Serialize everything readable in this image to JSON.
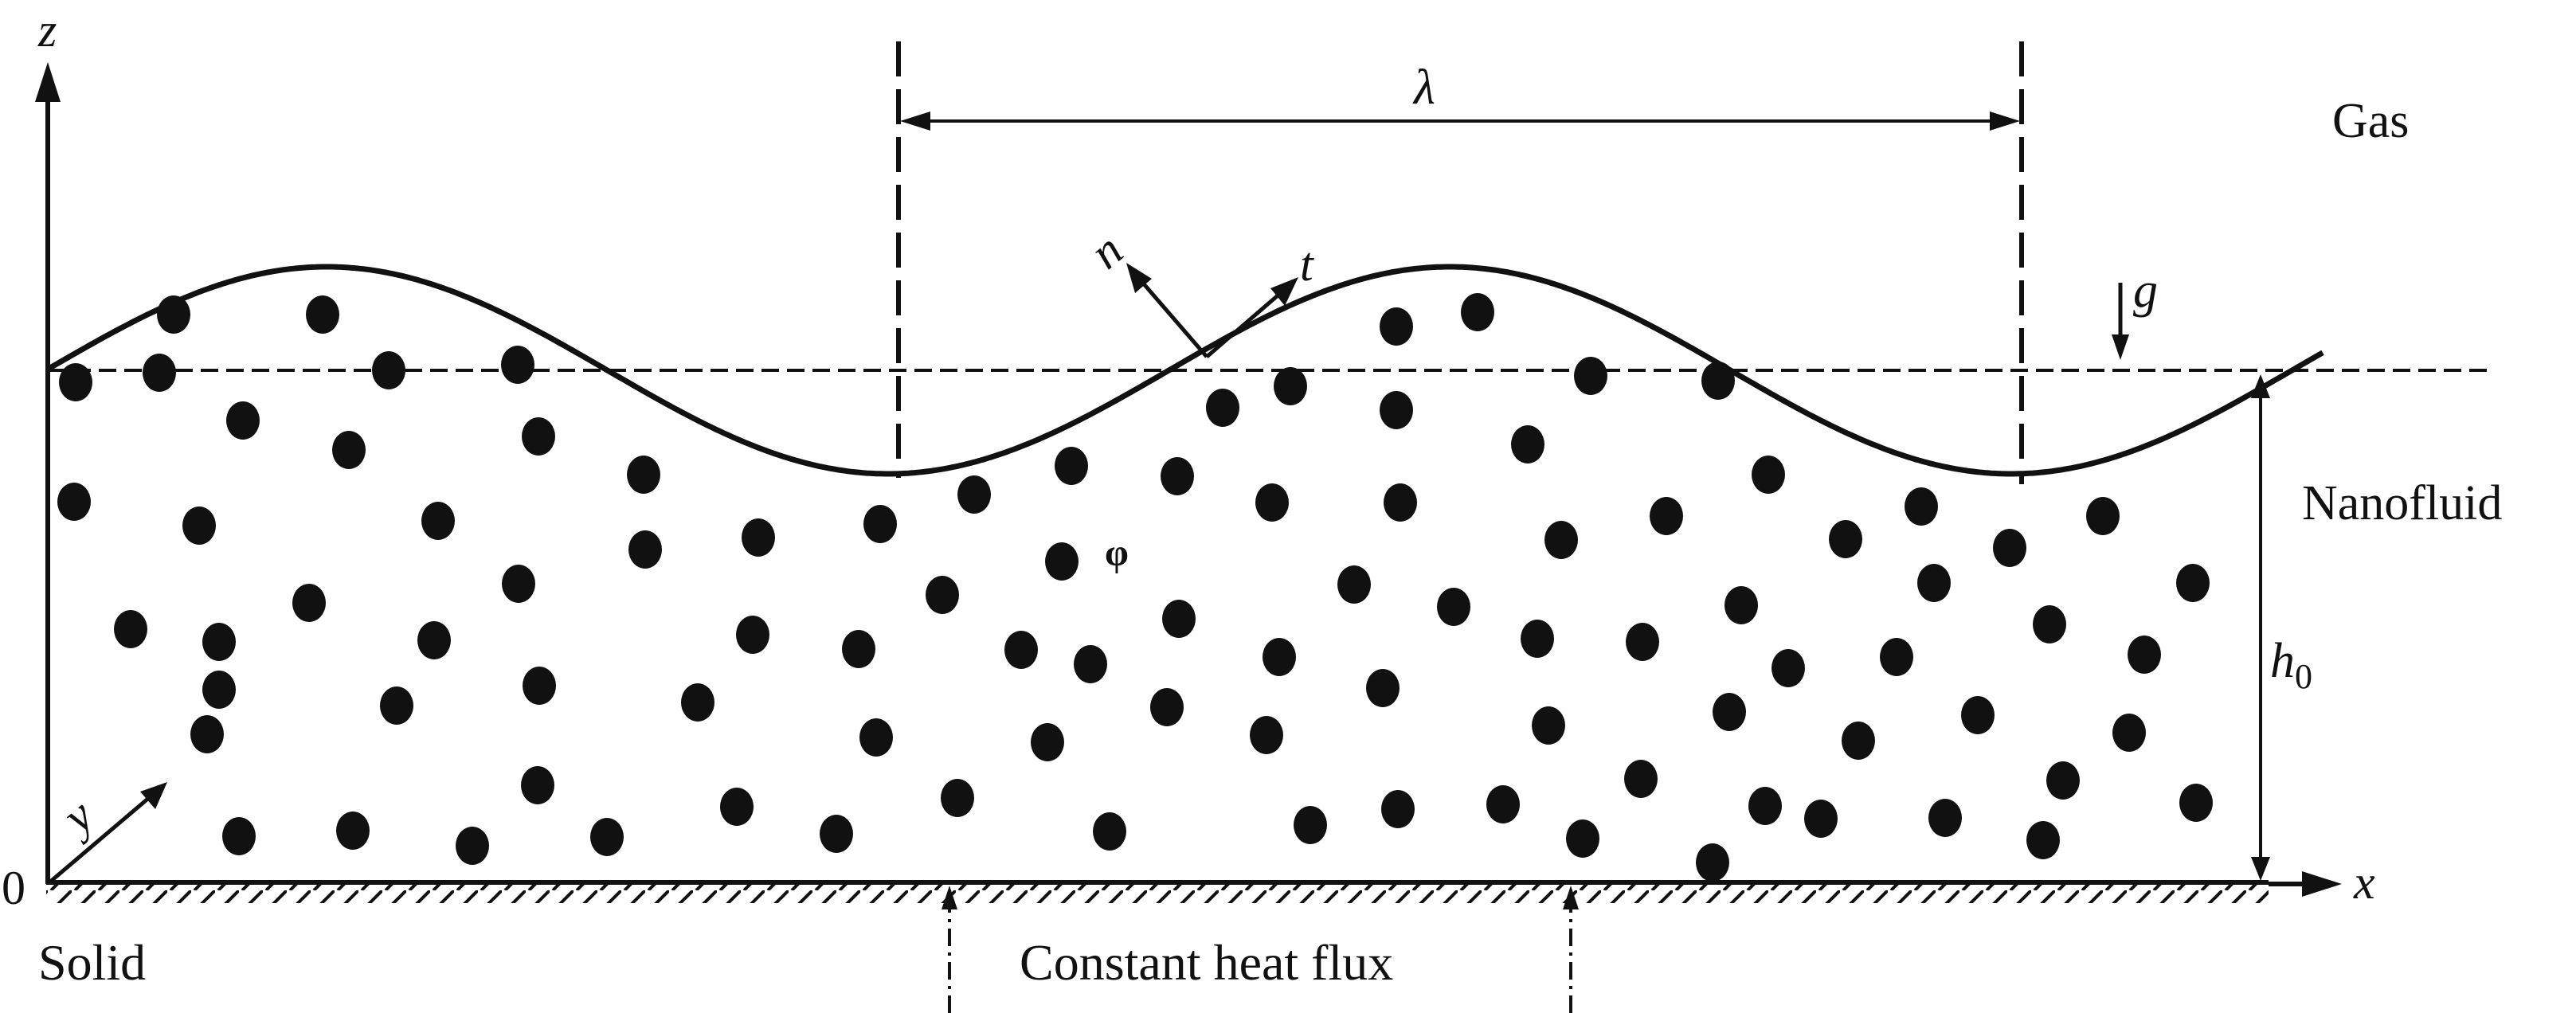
{
  "labels": {
    "z_axis": "z",
    "x_axis": "x",
    "y_axis": "y",
    "origin": "0",
    "wavelength": "λ",
    "gas": "Gas",
    "gravity": "g",
    "normal": "n",
    "tangent": "t",
    "nanofluid": "Nanofluid",
    "phi": "φ",
    "h0_main": "h",
    "h0_sub": "0",
    "solid": "Solid",
    "heat_flux": "Constant heat flux"
  },
  "colors": {
    "ink": "#111111",
    "background": "#ffffff"
  }
}
